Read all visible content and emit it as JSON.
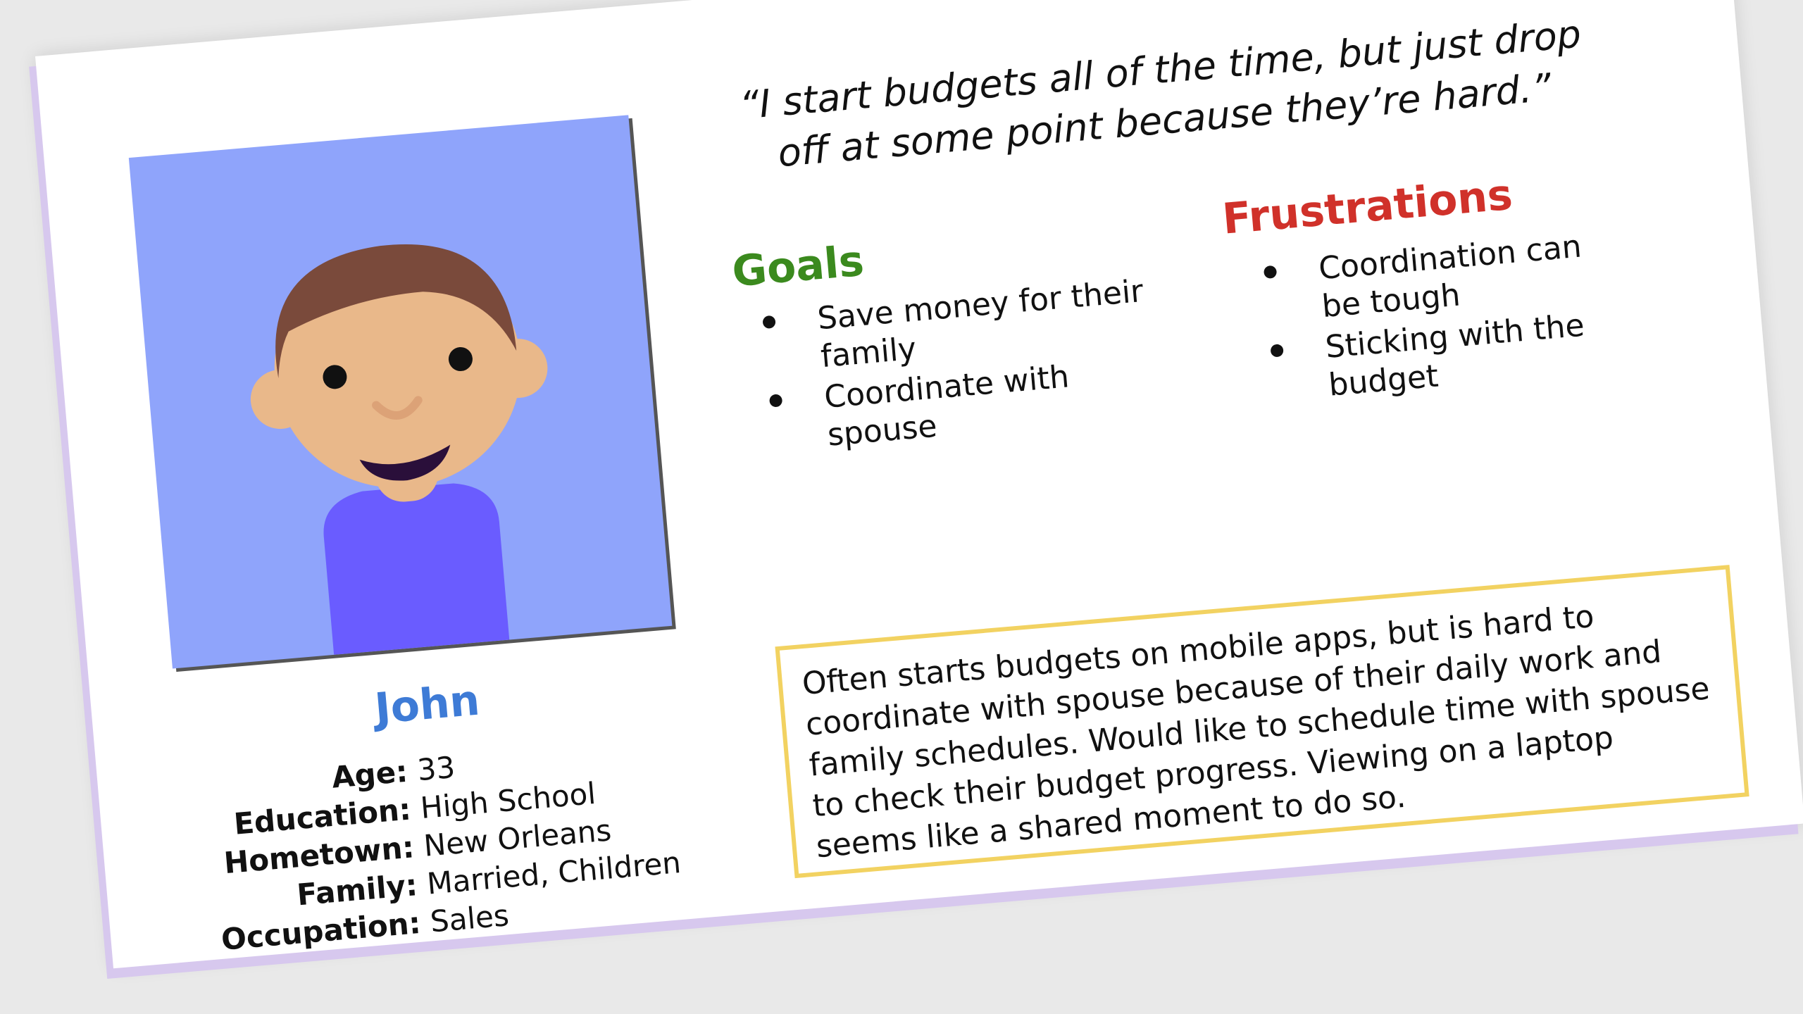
{
  "persona": {
    "name": "John",
    "avatar_icon": "person-avatar-icon",
    "details": [
      {
        "label": "Age:",
        "value": "33"
      },
      {
        "label": "Education:",
        "value": "High School"
      },
      {
        "label": "Hometown:",
        "value": "New Orleans"
      },
      {
        "label": "Family:",
        "value": "Married, Children"
      },
      {
        "label": "Occupation:",
        "value": "Sales"
      }
    ]
  },
  "quote": "“I start budgets all of the time, but just drop off at some point because they’re hard.”",
  "goals": {
    "heading": "Goals",
    "items": [
      "Save money for their family",
      "Coordinate with spouse"
    ]
  },
  "frustrations": {
    "heading": "Frustrations",
    "items": [
      "Coordination can be tough",
      "Sticking with the budget"
    ]
  },
  "scenario": "Often starts budgets on mobile apps, but is hard to coordinate with spouse because of their daily work and family schedules. Would like to schedule time with spouse to check their budget progress. Viewing on a laptop seems like a shared moment to do so.",
  "colors": {
    "name_blue": "#3e7bd6",
    "goals_green": "#3b8a1e",
    "frustrations_red": "#d0312a",
    "scenario_border": "#f2d261",
    "avatar_background": "#8fa4fb",
    "shirt": "#6a5cff",
    "skin": "#e9b88a",
    "hair": "#7a4a3b"
  }
}
